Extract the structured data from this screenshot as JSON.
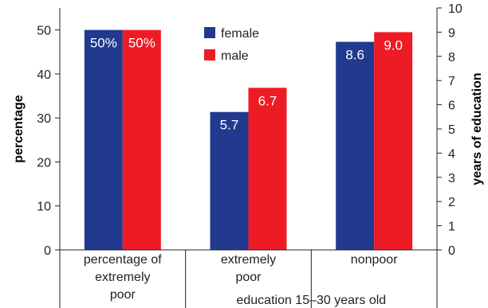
{
  "chart_data": {
    "type": "bar",
    "categories": [
      "percentage of extremely poor",
      "extremely poor",
      "nonpoor"
    ],
    "category_lines": [
      [
        "percentage of",
        "extremely",
        "poor"
      ],
      [
        "extremely",
        "poor"
      ],
      [
        "nonpoor"
      ]
    ],
    "group_label": "education 15–30 years old",
    "series": [
      {
        "name": "female",
        "color": "#213a8f",
        "values": [
          50,
          5.7,
          8.6
        ],
        "labels": [
          "50%",
          "5.7",
          "8.6"
        ]
      },
      {
        "name": "male",
        "color": "#ed1c24",
        "values": [
          50,
          6.7,
          9.0
        ],
        "labels": [
          "50%",
          "6.7",
          "9.0"
        ]
      }
    ],
    "bar_axis": [
      "left",
      "right",
      "right"
    ],
    "ylabel": "percentage",
    "ylim": [
      0,
      55
    ],
    "yticks": [
      0,
      10,
      20,
      30,
      40,
      50
    ],
    "y2label": "years of education",
    "y2lim": [
      0,
      10
    ],
    "y2ticks": [
      0,
      1,
      2,
      3,
      4,
      5,
      6,
      7,
      8,
      9,
      10
    ],
    "legend_position": "top-center",
    "grid": false
  }
}
